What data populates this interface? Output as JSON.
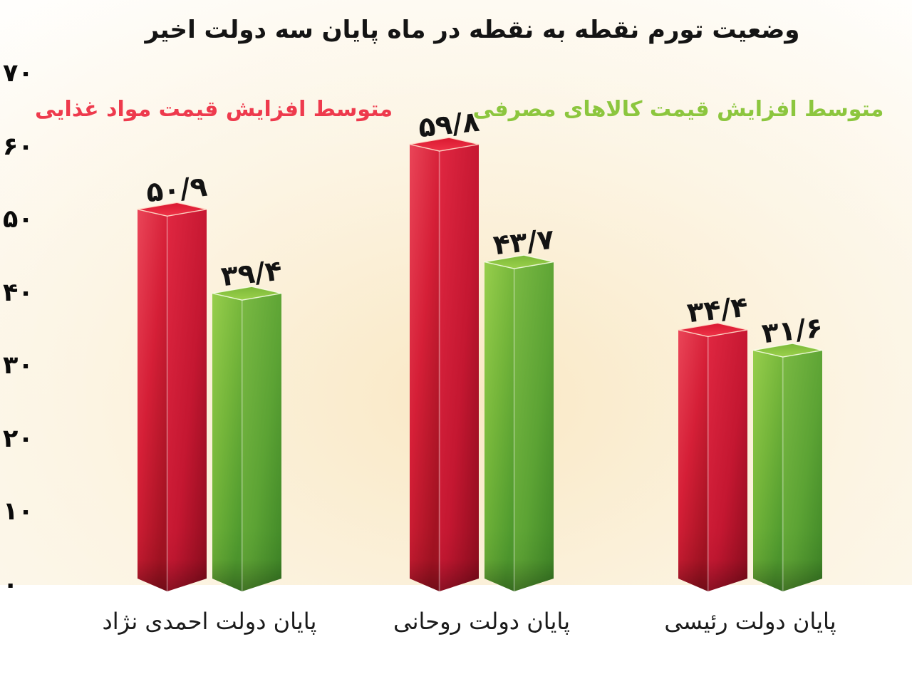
{
  "title": "وضعیت تورم نقطه به نقطه در ماه پایان سه دولت اخیر",
  "legend": {
    "food": {
      "label": "متوسط افزایش قیمت مواد غذایی",
      "color": "#ee3a4d"
    },
    "consumer": {
      "label": "متوسط افزایش قیمت کالاهای مصرفی",
      "color": "#8cc63e"
    }
  },
  "chart_data": {
    "type": "bar",
    "style": "3d-column",
    "rtl": true,
    "title": "وضعیت تورم نقطه به نقطه در ماه پایان سه دولت اخیر",
    "categories": [
      "پایان دولت احمدی نژاد",
      "پایان دولت روحانی",
      "پایان دولت رئیسی"
    ],
    "series": [
      {
        "key": "food-prices",
        "name": "متوسط افزایش قیمت مواد غذایی",
        "color": "#d6203a",
        "values": [
          50.9,
          59.8,
          34.4
        ],
        "value_labels": [
          "۵۰/۹",
          "۵۹/۸",
          "۳۴/۴"
        ]
      },
      {
        "key": "consumer-goods",
        "name": "متوسط افزایش قیمت کالاهای مصرفی",
        "color": "#6fb13c",
        "values": [
          39.4,
          43.7,
          31.6
        ],
        "value_labels": [
          "۳۹/۴",
          "۴۳/۷",
          "۳۱/۶"
        ]
      }
    ],
    "ylim": [
      0,
      70
    ],
    "yticks": {
      "values": [
        70,
        60,
        50,
        40,
        30,
        20,
        10,
        0
      ],
      "labels": [
        "۷۰",
        "۶۰",
        "۵۰",
        "۴۰",
        "۳۰",
        "۲۰",
        "۱۰",
        "۰"
      ]
    },
    "grid": true,
    "legend_position": "top"
  }
}
